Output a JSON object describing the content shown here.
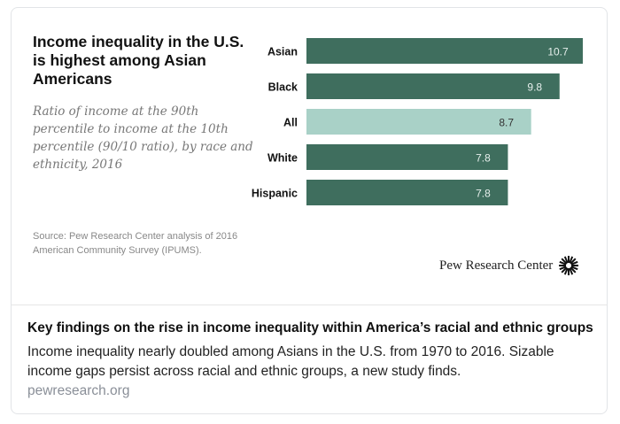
{
  "link_preview": {
    "title": "Key findings on the rise in income inequality within America’s racial and ethnic groups",
    "description": "Income inequality nearly doubled among Asians in the U.S. from 1970 to 2016. Sizable income gaps persist across racial and ethnic groups, a new study finds.",
    "domain": "pewresearch.org"
  },
  "image": {
    "source": "Source: Pew Research Center analysis of 2016 American Community Survey (IPUMS).",
    "logo_text": "Pew Research Center"
  },
  "chart_data": {
    "type": "bar",
    "orientation": "horizontal",
    "title": "Income inequality in the U.S. is highest among Asian Americans",
    "subtitle": "Ratio of income at the 90th percentile to income at the 10th percentile (90/10 ratio), by race and ethnicity, 2016",
    "categories": [
      "Asian",
      "Black",
      "All",
      "White",
      "Hispanic"
    ],
    "values": [
      10.7,
      9.8,
      8.7,
      7.8,
      7.8
    ],
    "data_labels": [
      "10.7",
      "9.8",
      "8.7",
      "7.8",
      "7.8"
    ],
    "highlight": "All",
    "colors": {
      "bar": "#3f6e5e",
      "highlight": "#a9d1c7"
    },
    "xlim": [
      0,
      10.7
    ],
    "grid": false
  }
}
